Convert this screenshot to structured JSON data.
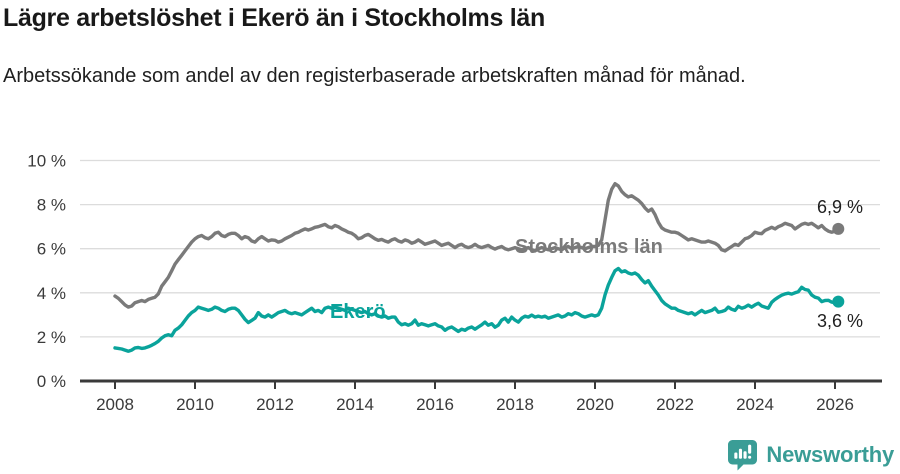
{
  "header": {
    "title": "Lägre arbetslöshet i Ekerö än i Stockholms län",
    "subtitle": "Arbetssökande som andel av den registerbaserade arbetskraften månad för månad."
  },
  "footer": {
    "brand": "Newsworthy"
  },
  "colors": {
    "ekero": "#0aa39b",
    "stockholm": "#7a7a7a",
    "grid": "#dcdcdc",
    "axis": "#3a3a3a",
    "tick_text": "#3a3a3a",
    "end_label_text": "#1f1f1f",
    "brand": "#3a9d96",
    "title_text": "#191919"
  },
  "chart_data": {
    "type": "line",
    "title": "Lägre arbetslöshet i Ekerö än i Stockholms län",
    "subtitle": "Arbetssökande som andel av den registerbaserade arbetskraften månad för månad.",
    "unit": "%",
    "x_start": "2008-01",
    "x_end": "2026-02",
    "x_frequency": "monthly",
    "x_tick_labels": [
      "2008",
      "2010",
      "2012",
      "2014",
      "2016",
      "2018",
      "2020",
      "2022",
      "2024",
      "2026"
    ],
    "y_tick_labels": [
      "0 %",
      "2 %",
      "4 %",
      "6 %",
      "8 %",
      "10 %"
    ],
    "ylim": [
      0,
      10
    ],
    "grid": "horizontal",
    "legend_position": "inline-labels",
    "series": [
      {
        "name": "Stockholms län",
        "color": "#7a7a7a",
        "end_label": "6,9 %",
        "end_value": 6.9,
        "values": [
          3.85,
          3.75,
          3.6,
          3.45,
          3.35,
          3.4,
          3.55,
          3.6,
          3.65,
          3.6,
          3.7,
          3.75,
          3.8,
          3.95,
          4.3,
          4.5,
          4.7,
          5.0,
          5.3,
          5.5,
          5.7,
          5.9,
          6.1,
          6.3,
          6.45,
          6.55,
          6.6,
          6.5,
          6.45,
          6.55,
          6.7,
          6.75,
          6.6,
          6.55,
          6.65,
          6.7,
          6.7,
          6.6,
          6.45,
          6.55,
          6.5,
          6.35,
          6.3,
          6.45,
          6.55,
          6.45,
          6.35,
          6.4,
          6.38,
          6.3,
          6.35,
          6.45,
          6.52,
          6.6,
          6.7,
          6.75,
          6.83,
          6.9,
          6.85,
          6.9,
          6.97,
          7.0,
          7.05,
          7.1,
          7.0,
          6.95,
          7.05,
          7.0,
          6.9,
          6.83,
          6.75,
          6.7,
          6.6,
          6.45,
          6.5,
          6.6,
          6.65,
          6.55,
          6.45,
          6.38,
          6.42,
          6.35,
          6.3,
          6.4,
          6.45,
          6.35,
          6.3,
          6.4,
          6.35,
          6.25,
          6.3,
          6.4,
          6.3,
          6.2,
          6.25,
          6.3,
          6.35,
          6.25,
          6.15,
          6.2,
          6.25,
          6.15,
          6.05,
          6.15,
          6.2,
          6.1,
          6.05,
          6.1,
          6.2,
          6.1,
          6.05,
          6.1,
          6.15,
          6.05,
          5.98,
          6.05,
          6.1,
          6.0,
          5.95,
          6.0,
          6.05,
          6.0,
          5.95,
          6.0,
          6.05,
          5.95,
          5.9,
          6.0,
          6.05,
          6.0,
          5.95,
          6.0,
          6.05,
          6.0,
          5.95,
          6.05,
          6.1,
          6.0,
          6.05,
          6.1,
          6.05,
          6.0,
          6.05,
          6.1,
          6.1,
          6.15,
          6.4,
          7.3,
          8.2,
          8.7,
          8.95,
          8.85,
          8.6,
          8.45,
          8.35,
          8.4,
          8.3,
          8.2,
          8.05,
          7.85,
          7.7,
          7.8,
          7.55,
          7.2,
          6.95,
          6.85,
          6.8,
          6.75,
          6.75,
          6.7,
          6.6,
          6.5,
          6.4,
          6.45,
          6.4,
          6.35,
          6.3,
          6.3,
          6.35,
          6.3,
          6.25,
          6.15,
          5.95,
          5.9,
          6.0,
          6.1,
          6.2,
          6.15,
          6.3,
          6.45,
          6.5,
          6.6,
          6.75,
          6.7,
          6.68,
          6.83,
          6.9,
          6.97,
          6.9,
          7.0,
          7.06,
          7.15,
          7.1,
          7.05,
          6.9,
          7.0,
          7.1,
          7.15,
          7.1,
          7.15,
          7.05,
          6.95,
          7.05,
          6.9,
          6.8,
          6.75,
          6.8,
          6.9
        ]
      },
      {
        "name": "Ekerö",
        "color": "#0aa39b",
        "end_label": "3,6 %",
        "end_value": 3.6,
        "values": [
          1.5,
          1.48,
          1.45,
          1.4,
          1.35,
          1.4,
          1.5,
          1.52,
          1.48,
          1.5,
          1.55,
          1.62,
          1.7,
          1.8,
          1.95,
          2.05,
          2.1,
          2.05,
          2.3,
          2.4,
          2.55,
          2.75,
          2.95,
          3.1,
          3.2,
          3.35,
          3.3,
          3.25,
          3.2,
          3.25,
          3.35,
          3.3,
          3.2,
          3.15,
          3.25,
          3.3,
          3.3,
          3.2,
          3.0,
          2.8,
          2.65,
          2.75,
          2.85,
          3.1,
          2.95,
          2.9,
          3.0,
          2.9,
          3.0,
          3.1,
          3.15,
          3.2,
          3.1,
          3.05,
          3.1,
          3.05,
          3.0,
          3.1,
          3.2,
          3.3,
          3.15,
          3.2,
          3.1,
          3.3,
          3.35,
          3.3,
          3.35,
          3.3,
          3.25,
          3.2,
          3.3,
          3.25,
          3.2,
          3.15,
          3.1,
          3.15,
          3.05,
          3.0,
          3.05,
          2.95,
          2.9,
          2.95,
          2.85,
          2.9,
          2.9,
          2.67,
          2.55,
          2.6,
          2.53,
          2.6,
          2.76,
          2.53,
          2.6,
          2.55,
          2.5,
          2.55,
          2.6,
          2.5,
          2.45,
          2.3,
          2.4,
          2.45,
          2.35,
          2.25,
          2.35,
          2.3,
          2.4,
          2.45,
          2.35,
          2.45,
          2.55,
          2.67,
          2.53,
          2.6,
          2.44,
          2.53,
          2.76,
          2.85,
          2.67,
          2.9,
          2.76,
          2.67,
          2.85,
          2.94,
          2.9,
          2.99,
          2.9,
          2.94,
          2.9,
          2.94,
          2.85,
          2.9,
          2.95,
          3.0,
          2.9,
          2.95,
          3.05,
          3.0,
          3.1,
          3.05,
          2.95,
          2.9,
          2.95,
          3.0,
          2.95,
          3.0,
          3.3,
          3.9,
          4.35,
          4.7,
          5.0,
          5.1,
          4.95,
          5.0,
          4.9,
          4.85,
          4.9,
          4.8,
          4.6,
          4.45,
          4.55,
          4.3,
          4.1,
          3.9,
          3.65,
          3.5,
          3.4,
          3.3,
          3.3,
          3.2,
          3.15,
          3.1,
          3.05,
          3.1,
          3.0,
          3.1,
          3.2,
          3.1,
          3.15,
          3.2,
          3.3,
          3.12,
          3.15,
          3.2,
          3.35,
          3.25,
          3.2,
          3.39,
          3.3,
          3.35,
          3.44,
          3.35,
          3.45,
          3.53,
          3.4,
          3.35,
          3.3,
          3.57,
          3.7,
          3.8,
          3.89,
          3.95,
          3.98,
          3.94,
          4.0,
          4.05,
          4.25,
          4.15,
          4.12,
          3.9,
          3.8,
          3.76,
          3.6,
          3.65,
          3.66,
          3.58,
          3.55,
          3.6
        ]
      }
    ]
  }
}
